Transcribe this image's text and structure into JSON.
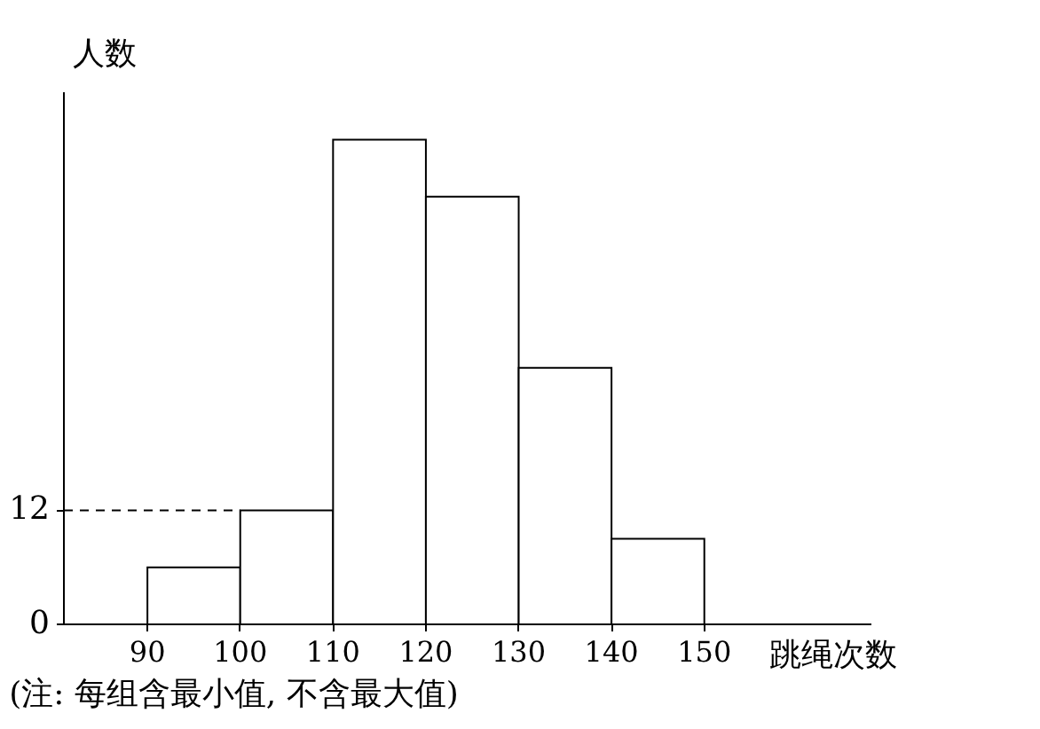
{
  "chart_data": {
    "type": "histogram",
    "bins": [
      90,
      100,
      110,
      120,
      130,
      140,
      150
    ],
    "values": [
      6,
      12,
      51,
      45,
      27,
      9
    ],
    "color": "#ffffff",
    "xlim": [
      81,
      168
    ],
    "ylim": [
      0,
      56
    ],
    "xticks": [
      90,
      100,
      110,
      120,
      130,
      140,
      150
    ],
    "yticks": [
      0,
      12
    ],
    "xlabel": "跳绳次数",
    "ylabel": "人数",
    "ref_lines": [
      {
        "axis": "y",
        "value": 12,
        "line_style": "dashed"
      }
    ],
    "annotations": [
      "(注: 每组含最小值, 不含最大值)"
    ],
    "grid": false
  }
}
